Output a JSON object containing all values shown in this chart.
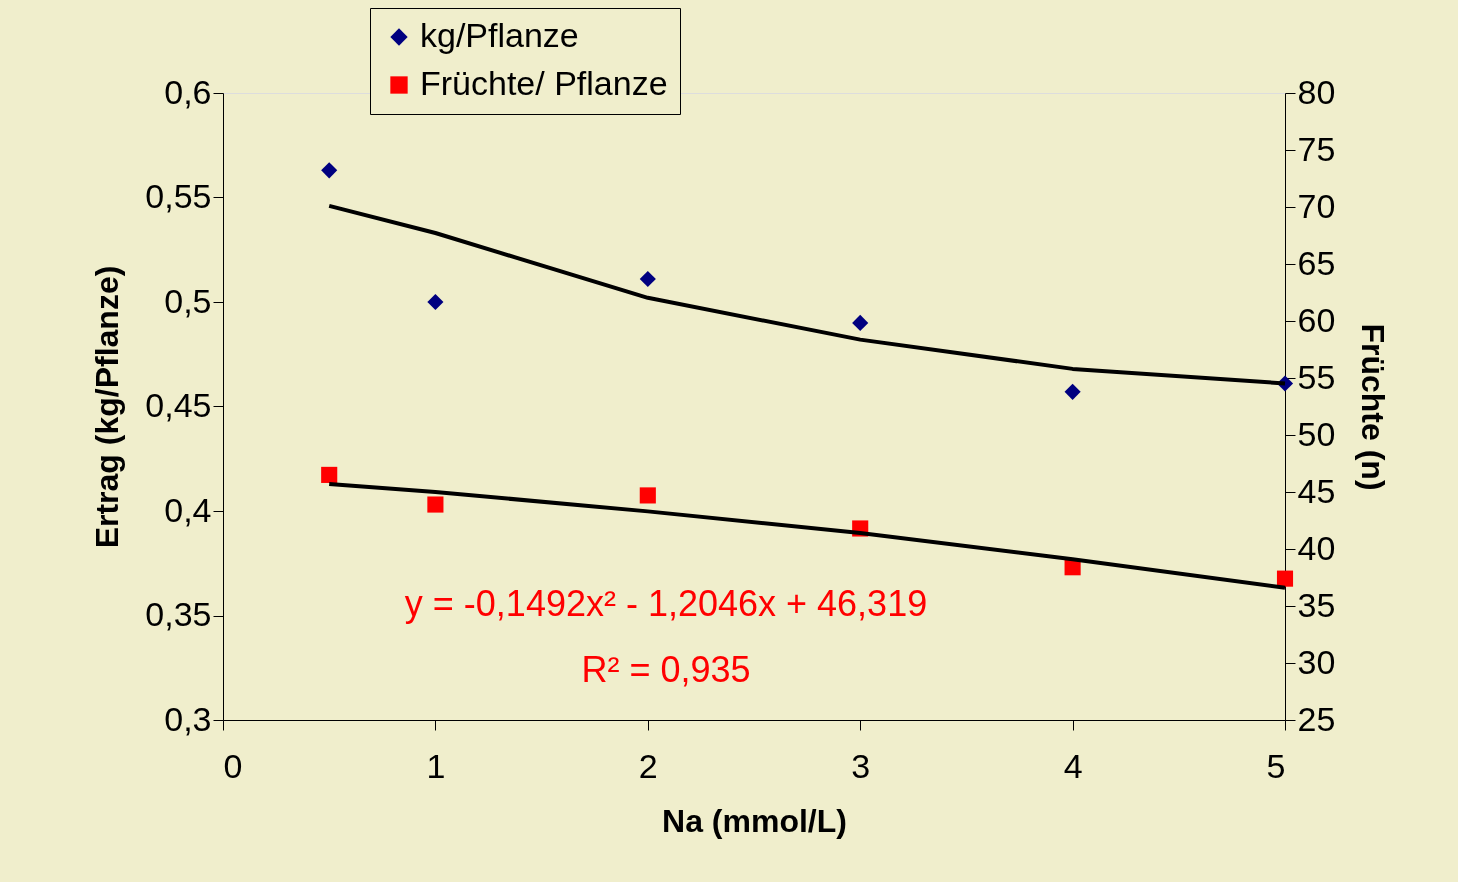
{
  "chart_data": {
    "type": "scatter",
    "xlabel": "Na (mmol/L)",
    "ylabel": "Ertrag (kg/Pflanze)",
    "y2label": "Früchte (n)",
    "xlim": [
      0,
      5
    ],
    "xticks": [
      0,
      1,
      2,
      3,
      4,
      5
    ],
    "ylim": [
      0.3,
      0.6
    ],
    "yticks": [
      {
        "value": 0.3,
        "label": "0,3"
      },
      {
        "value": 0.35,
        "label": "0,35"
      },
      {
        "value": 0.4,
        "label": "0,4"
      },
      {
        "value": 0.45,
        "label": "0,45"
      },
      {
        "value": 0.5,
        "label": "0,5"
      },
      {
        "value": 0.55,
        "label": "0,55"
      },
      {
        "value": 0.6,
        "label": "0,6"
      }
    ],
    "y2lim": [
      25,
      80
    ],
    "y2ticks": [
      25,
      30,
      35,
      40,
      45,
      50,
      55,
      60,
      65,
      70,
      75,
      80
    ],
    "grid": false,
    "legend": "top left",
    "series": [
      {
        "name": "kg/Pflanze",
        "marker": "diamond",
        "color": "#000080",
        "x": [
          0.5,
          1,
          2,
          3,
          4,
          5
        ],
        "values": [
          0.563,
          0.5,
          0.511,
          0.49,
          0.457,
          0.461
        ]
      },
      {
        "name": "Früchte/ Pflanze",
        "marker": "square",
        "color": "#ff0000",
        "axis": "y2",
        "x": [
          0.5,
          1,
          2,
          3,
          4,
          5
        ],
        "values": [
          46.5,
          43.9,
          44.7,
          41.8,
          38.4,
          37.4
        ]
      },
      {
        "type": "line",
        "color": "#000000",
        "x": [
          0.5,
          1,
          2,
          3,
          4,
          5
        ],
        "values": [
          0.546,
          0.533,
          0.502,
          0.482,
          0.468,
          0.461
        ]
      },
      {
        "type": "line",
        "color": "#000000",
        "axis": "y2",
        "x": [
          0.5,
          1,
          2,
          3,
          4,
          5
        ],
        "values": [
          45.7,
          45.0,
          43.3,
          41.4,
          39.1,
          36.6
        ]
      }
    ],
    "annotations": [
      "y = -0,1492x² - 1,2046x + 46,319",
      "R² = 0,935"
    ]
  }
}
